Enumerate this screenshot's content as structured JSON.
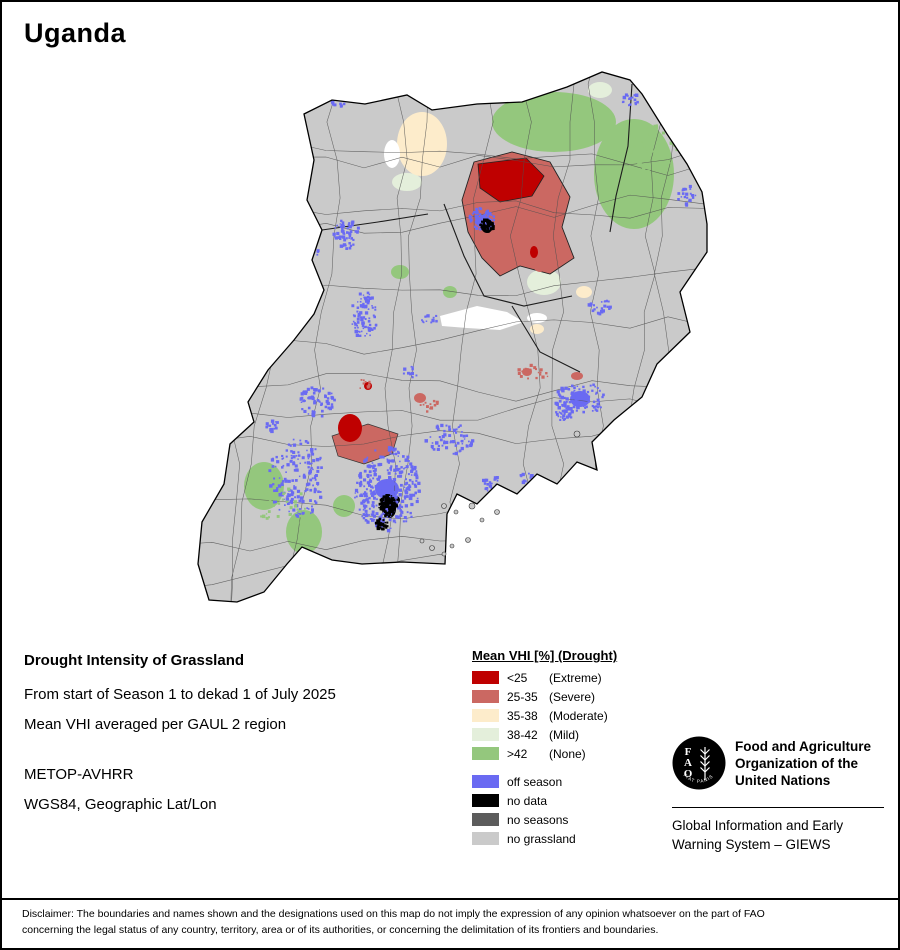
{
  "title": "Uganda",
  "info": {
    "heading": "Drought Intensity of Grassland",
    "period": "From start of Season 1 to dekad 1 of July 2025",
    "aggregation": "Mean VHI averaged per GAUL 2 region",
    "sensor": "METOP-AVHRR",
    "projection": "WGS84, Geographic Lat/Lon"
  },
  "legend": {
    "title": "Mean VHI [%] (Drought)",
    "drought_classes": [
      {
        "range": "<25",
        "label": "(Extreme)",
        "color": "#bf0000"
      },
      {
        "range": "25-35",
        "label": "(Severe)",
        "color": "#cb6862"
      },
      {
        "range": "35-38",
        "label": "(Moderate)",
        "color": "#fdeccb"
      },
      {
        "range": "38-42",
        "label": "(Mild)",
        "color": "#e4efdb"
      },
      {
        "range": ">42",
        "label": "(None)",
        "color": "#94c77d"
      }
    ],
    "other_classes": [
      {
        "label": "off season",
        "color": "#6a6af2"
      },
      {
        "label": "no data",
        "color": "#000000"
      },
      {
        "label": "no seasons",
        "color": "#5c5c5c"
      },
      {
        "label": "no grassland",
        "color": "#cacaca"
      }
    ]
  },
  "fao": {
    "logo_text": "FAO",
    "logo_motto": "FIAT PANIS",
    "org_lines": [
      "Food and Agriculture",
      "Organization of the",
      "United Nations"
    ],
    "giews_lines": [
      "Global Information and Early",
      "Warning System – GIEWS"
    ]
  },
  "disclaimer_lines": [
    "Disclaimer: The boundaries and names shown and the designations used on this map do not imply the expression of any opinion whatsoever on the part of FAO",
    "concerning the legal status of any country, territory, area or of its authorities, or concerning the delimitation of its frontiers and boundaries."
  ]
}
